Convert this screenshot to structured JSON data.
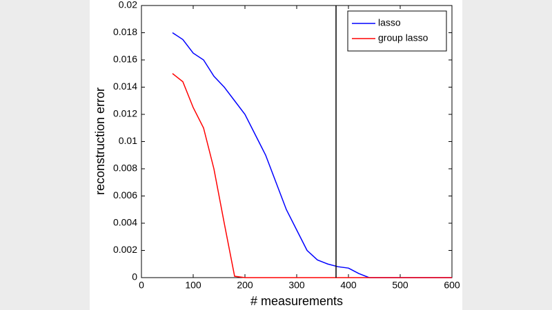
{
  "chart_data": {
    "type": "line",
    "xlabel": "# measurements",
    "ylabel": "reconstruction error",
    "x": [
      60,
      80,
      100,
      120,
      140,
      160,
      180,
      200,
      220,
      240,
      260,
      280,
      300,
      320,
      340,
      360,
      380,
      400,
      420,
      440,
      460,
      480,
      500,
      520,
      540,
      560,
      580,
      600
    ],
    "series": [
      {
        "name": "lasso",
        "color": "#0000ff",
        "values": [
          0.018,
          0.0175,
          0.0165,
          0.016,
          0.0148,
          0.014,
          0.013,
          0.012,
          0.0105,
          0.009,
          0.007,
          0.005,
          0.0035,
          0.002,
          0.0013,
          0.001,
          0.0008,
          0.0007,
          0.0003,
          0,
          0,
          0,
          0,
          0,
          0,
          0,
          0,
          0
        ]
      },
      {
        "name": "group lasso",
        "color": "#ff0000",
        "values": [
          0.015,
          0.0144,
          0.0125,
          0.011,
          0.008,
          0.004,
          0.0001,
          0,
          0,
          0,
          0,
          0,
          0,
          0,
          0,
          0,
          0,
          0,
          0,
          0,
          0,
          0,
          0,
          0,
          0,
          0,
          0,
          0
        ]
      }
    ],
    "vertical_line_x": 376,
    "xlim": [
      0,
      600
    ],
    "xticks": [
      0,
      100,
      200,
      300,
      400,
      500,
      600
    ],
    "ylim": [
      0,
      0.02
    ],
    "yticks": [
      0,
      0.002,
      0.004,
      0.006,
      0.008,
      0.01,
      0.012,
      0.014,
      0.016,
      0.018,
      0.02
    ],
    "legend": "upper right",
    "grid": false
  }
}
